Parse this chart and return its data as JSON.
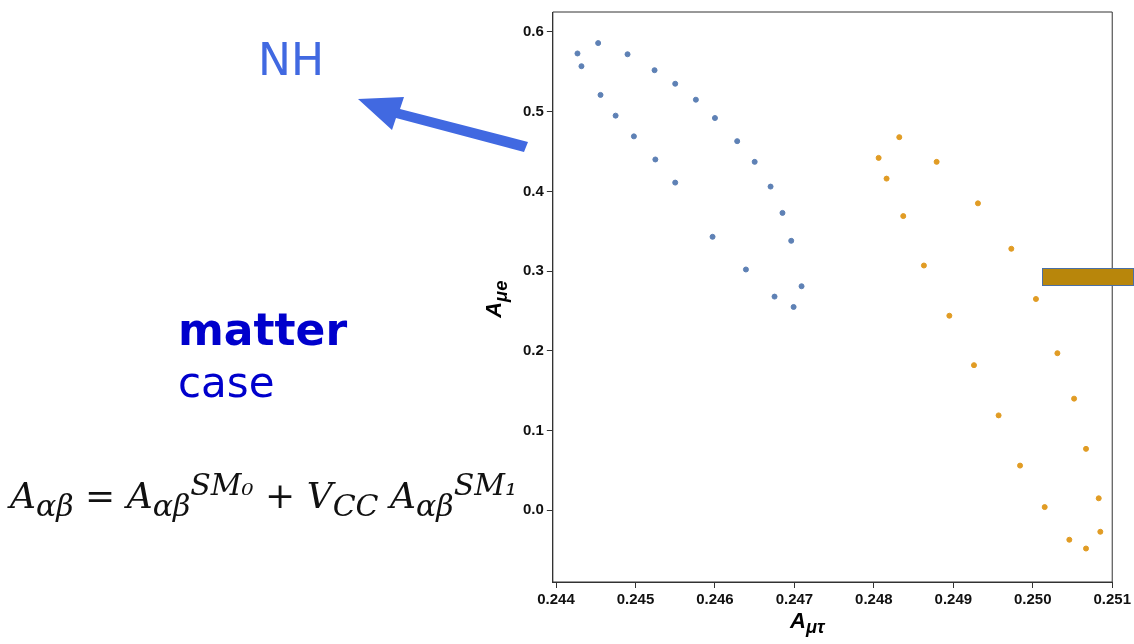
{
  "chart_data": {
    "type": "scatter",
    "xlabel": "A$_{μτ}$",
    "ylabel": "A$_{μe}$",
    "annotations": [
      "NH",
      "matter",
      "case",
      "A$_{αβ}$ = A$_{αβ}$$^{SM₀}$ + V$_{CC}$ A$_{αβ}$$^{SM₁}$"
    ],
    "xlim": [
      0.24396,
      0.251
    ],
    "ylim": [
      -0.09,
      0.625
    ],
    "xticks": [
      0.244,
      0.245,
      0.246,
      0.247,
      0.248,
      0.249,
      {
        "value": 0.25,
        "label": "0.250"
      },
      0.251
    ],
    "yticks": [
      {
        "value": 0,
        "label": "0.0"
      },
      0.1,
      0.2,
      0.3,
      0.4,
      0.5,
      0.6
    ],
    "grid": false,
    "legend": false,
    "marker": "circle",
    "series": [
      {
        "color": "#5e81b5",
        "x": [
          0.24427,
          0.24453,
          0.2449,
          0.24524,
          0.2455,
          0.24576,
          0.246,
          0.24628,
          0.2465,
          0.2467,
          0.24685,
          0.24696,
          0.24709,
          0.24699,
          0.24675,
          0.24639,
          0.24597,
          0.2455,
          0.24525,
          0.24498,
          0.24475,
          0.24456,
          0.24432
        ],
        "values": [
          0.573,
          0.586,
          0.572,
          0.552,
          0.535,
          0.515,
          0.492,
          0.463,
          0.437,
          0.406,
          0.373,
          0.338,
          0.281,
          0.255,
          0.268,
          0.302,
          0.343,
          0.411,
          0.44,
          0.469,
          0.495,
          0.521,
          0.557
        ]
      },
      {
        "color": "#e19c24",
        "x": [
          0.24806,
          0.24832,
          0.24879,
          0.24931,
          0.24973,
          0.25004,
          0.25031,
          0.25052,
          0.25067,
          0.25083,
          0.25085,
          0.25067,
          0.25046,
          0.25015,
          0.24984,
          0.24957,
          0.24926,
          0.24895,
          0.24863,
          0.24837,
          0.24816
        ],
        "values": [
          0.442,
          0.468,
          0.437,
          0.385,
          0.328,
          0.265,
          0.197,
          0.14,
          0.077,
          0.015,
          -0.027,
          -0.048,
          -0.037,
          0.004,
          0.056,
          0.119,
          0.182,
          0.244,
          0.307,
          0.369,
          0.416
        ]
      }
    ]
  }
}
